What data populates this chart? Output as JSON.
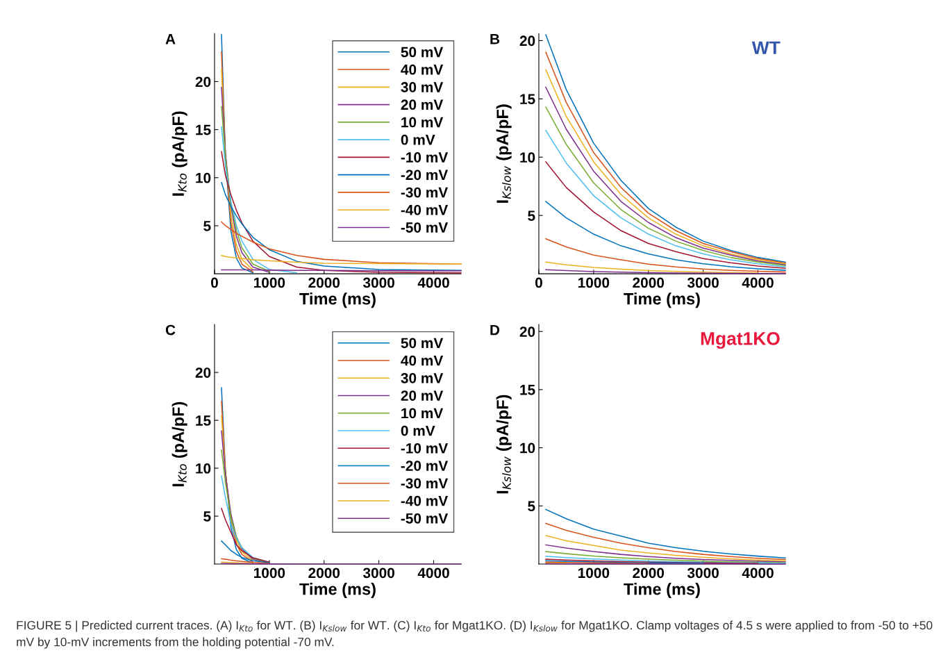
{
  "chart_data": [
    {
      "type": "line",
      "title": "A",
      "xlabel": "Time (ms)",
      "ylabel": "I$_{Kto}$ (pA/pF)",
      "xlim": [
        0,
        4500
      ],
      "xticks": [
        0,
        1000,
        2000,
        3000,
        4000
      ],
      "ylim": [
        0,
        25
      ],
      "yticks": [
        5,
        10,
        15,
        20
      ],
      "legend": "top right",
      "grid": false,
      "x": [
        127,
        200,
        300,
        400,
        500,
        700,
        1000,
        1500,
        2000,
        3000,
        4500
      ],
      "series": [
        {
          "name": "50 mV",
          "color": "#0072bd",
          "values": [
            24.9,
            12,
            4.4,
            1.6,
            0.6,
            0.1,
            null,
            null,
            null,
            null,
            null
          ]
        },
        {
          "name": "40 mV",
          "color": "#d95319",
          "values": [
            23.1,
            12,
            5.3,
            2.3,
            1,
            0.2,
            null,
            null,
            null,
            null,
            null
          ]
        },
        {
          "name": "30 mV",
          "color": "#edb120",
          "values": [
            21.3,
            12.4,
            6.1,
            3,
            1.5,
            0.4,
            null,
            null,
            null,
            null,
            null
          ]
        },
        {
          "name": "20 mV",
          "color": "#7e2f8e",
          "values": [
            19.4,
            12.5,
            7,
            3.9,
            2.2,
            0.7,
            0.15,
            null,
            null,
            null,
            null
          ]
        },
        {
          "name": "10 mV",
          "color": "#77ac30",
          "values": [
            17.4,
            12.1,
            7.3,
            4.5,
            2.7,
            1,
            0.25,
            null,
            null,
            null,
            null
          ]
        },
        {
          "name": "0 mV",
          "color": "#4dbeee",
          "values": [
            15.3,
            11.2,
            7.5,
            5,
            3.4,
            1.5,
            0.45,
            0.1,
            null,
            null,
            null
          ]
        },
        {
          "name": "-10 mV",
          "color": "#a2142f",
          "values": [
            12.7,
            10.2,
            8.2,
            6.6,
            5.3,
            3.4,
            1.8,
            0.7,
            0.35,
            0.15,
            0.1
          ]
        },
        {
          "name": "-20 mV",
          "color": "#0072bd",
          "values": [
            9.5,
            8.2,
            7,
            6,
            5.2,
            3.8,
            2.5,
            1.3,
            0.8,
            0.45,
            0.35
          ]
        },
        {
          "name": "-30 mV",
          "color": "#d95319",
          "values": [
            5.4,
            5,
            4.6,
            4.2,
            3.9,
            3.3,
            2.6,
            1.9,
            1.5,
            1.15,
            1
          ]
        },
        {
          "name": "-40 mV",
          "color": "#edb120",
          "values": [
            1.9,
            1.8,
            1.7,
            1.65,
            1.6,
            1.45,
            1.35,
            1.2,
            1.1,
            1.05,
            1
          ]
        },
        {
          "name": "-50 mV",
          "color": "#7e2f8e",
          "values": [
            0.4,
            0.4,
            0.4,
            0.4,
            0.4,
            0.4,
            0.38,
            0.36,
            0.35,
            0.32,
            0.3
          ]
        }
      ]
    },
    {
      "type": "line",
      "title": "B",
      "xlabel": "Time (ms)",
      "ylabel": "I$_{Kslow}$ (pA/pF)",
      "xlim": [
        0,
        4500
      ],
      "xticks": [
        0,
        1000,
        2000,
        3000,
        4000
      ],
      "ylim": [
        0,
        20.6
      ],
      "yticks": [
        5,
        10,
        15,
        20
      ],
      "grid": false,
      "annotations": [
        "WT"
      ],
      "x": [
        127,
        500,
        1000,
        1500,
        2000,
        2500,
        3000,
        3500,
        4000,
        4500
      ],
      "series": [
        {
          "color": "#0072bd",
          "values": [
            20.5,
            15.8,
            11.2,
            8.0,
            5.6,
            4.0,
            2.8,
            2.0,
            1.4,
            1.0
          ]
        },
        {
          "color": "#d95319",
          "values": [
            19.0,
            14.7,
            10.4,
            7.4,
            5.2,
            3.7,
            2.6,
            1.9,
            1.3,
            0.93
          ]
        },
        {
          "color": "#edb120",
          "values": [
            17.5,
            13.5,
            9.6,
            6.8,
            4.8,
            3.4,
            2.4,
            1.7,
            1.2,
            0.86
          ]
        },
        {
          "color": "#7e2f8e",
          "values": [
            16.0,
            12.4,
            8.8,
            6.2,
            4.4,
            3.1,
            2.2,
            1.6,
            1.1,
            0.78
          ]
        },
        {
          "color": "#77ac30",
          "values": [
            14.3,
            11.1,
            7.8,
            5.5,
            3.9,
            2.8,
            2.0,
            1.4,
            1.0,
            0.7
          ]
        },
        {
          "color": "#4dbeee",
          "values": [
            12.3,
            9.5,
            6.7,
            4.8,
            3.4,
            2.4,
            1.7,
            1.2,
            0.85,
            0.6
          ]
        },
        {
          "color": "#a2142f",
          "values": [
            9.6,
            7.4,
            5.3,
            3.7,
            2.6,
            1.9,
            1.3,
            0.94,
            0.66,
            0.47
          ]
        },
        {
          "color": "#0072bd",
          "values": [
            6.2,
            4.8,
            3.4,
            2.4,
            1.7,
            1.2,
            0.86,
            0.61,
            0.43,
            0.3
          ]
        },
        {
          "color": "#d95319",
          "values": [
            3.0,
            2.3,
            1.6,
            1.2,
            0.83,
            0.59,
            0.41,
            0.29,
            0.21,
            0.15
          ]
        },
        {
          "color": "#edb120",
          "values": [
            1.0,
            0.77,
            0.55,
            0.39,
            0.28,
            0.2,
            0.14,
            0.1,
            0.07,
            null
          ]
        },
        {
          "color": "#7e2f8e",
          "values": [
            0.35,
            0.27,
            0.19,
            0.14,
            0.1,
            0.07,
            0.05,
            0.03,
            0.02,
            0.02
          ]
        }
      ]
    },
    {
      "type": "line",
      "title": "C",
      "xlabel": "Time (ms)",
      "ylabel": "I$_{Kto}$ (pA/pF)",
      "xlim": [
        0,
        4500
      ],
      "xticks": [
        1000,
        2000,
        3000,
        4000
      ],
      "ylim": [
        0,
        25
      ],
      "yticks": [
        5,
        10,
        15,
        20
      ],
      "legend": "top right",
      "grid": false,
      "x": [
        127,
        200,
        300,
        400,
        500,
        700,
        1000,
        1500,
        2000,
        4500
      ],
      "series": [
        {
          "name": "50 mV",
          "color": "#0072bd",
          "values": [
            18.4,
            9.6,
            3.8,
            1.5,
            0.6,
            0.1,
            null,
            null,
            null,
            null
          ]
        },
        {
          "name": "40 mV",
          "color": "#d95319",
          "values": [
            17.0,
            9.6,
            4.5,
            2.1,
            1.0,
            0.2,
            null,
            null,
            null,
            null
          ]
        },
        {
          "name": "30 mV",
          "color": "#edb120",
          "values": [
            15.5,
            9.4,
            4.9,
            2.5,
            1.3,
            0.34,
            null,
            null,
            null,
            null
          ]
        },
        {
          "name": "20 mV",
          "color": "#7e2f8e",
          "values": [
            13.9,
            9.3,
            5.2,
            2.8,
            1.6,
            0.5,
            0.1,
            null,
            null,
            null
          ]
        },
        {
          "name": "10 mV",
          "color": "#77ac30",
          "values": [
            11.9,
            8.5,
            4.9,
            2.8,
            1.7,
            0.6,
            0.12,
            null,
            null,
            null
          ]
        },
        {
          "name": "0 mV",
          "color": "#4dbeee",
          "values": [
            9.2,
            6.9,
            4.2,
            2.7,
            1.7,
            0.68,
            0.17,
            null,
            null,
            null
          ]
        },
        {
          "name": "-10 mV",
          "color": "#a2142f",
          "values": [
            5.8,
            4.6,
            3.3,
            2.0,
            1.4,
            0.65,
            0.2,
            null,
            null,
            null
          ]
        },
        {
          "name": "-20 mV",
          "color": "#0072bd",
          "values": [
            2.4,
            2.0,
            1.4,
            1.0,
            0.7,
            0.35,
            0.13,
            null,
            null,
            null
          ]
        },
        {
          "name": "-30 mV",
          "color": "#d95319",
          "values": [
            0.55,
            0.5,
            0.4,
            0.33,
            0.27,
            0.17,
            0.08,
            null,
            null,
            null
          ]
        },
        {
          "name": "-40 mV",
          "color": "#edb120",
          "values": [
            0.2,
            0.18,
            0.15,
            0.12,
            0.1,
            0.06,
            null,
            null,
            null,
            null
          ]
        },
        {
          "name": "-50 mV",
          "color": "#7e2f8e",
          "values": [
            0.05,
            0.05,
            0.04,
            0.03,
            0.03,
            0.02,
            0.01,
            0,
            0,
            0
          ]
        }
      ]
    },
    {
      "type": "line",
      "title": "D",
      "xlabel": "Time (ms)",
      "ylabel": "I$_{Kslow}$ (pA/pF)",
      "xlim": [
        0,
        4500
      ],
      "xticks": [
        1000,
        2000,
        3000,
        4000
      ],
      "ylim": [
        0,
        20.6
      ],
      "yticks": [
        5,
        10,
        15,
        20
      ],
      "grid": false,
      "annotations": [
        "Mgat1KO",
        "FIGURE 5 | Predicted current traces. (A) I$_{Kto}$ for WT. (B) I$_{Kslow}$ for WT. (C) I$_{Kto}$ for Mgat1KO. (D) I$_{Kslow}$ for Mgat1KO. Clamp voltages of 4.5 s were applied to from -50 to +50 mV by 10-mV increments from the holding potential -70 mV."
      ],
      "x": [
        127,
        500,
        1000,
        1500,
        2000,
        2500,
        3000,
        3500,
        4000,
        4500
      ],
      "series": [
        {
          "color": "#0072bd",
          "values": [
            4.7,
            3.9,
            3.0,
            2.4,
            1.8,
            1.4,
            1.1,
            0.87,
            0.68,
            0.53
          ]
        },
        {
          "color": "#d95319",
          "values": [
            3.5,
            2.9,
            2.3,
            1.8,
            1.4,
            1.07,
            0.83,
            0.65,
            0.5,
            0.39
          ]
        },
        {
          "color": "#edb120",
          "values": [
            2.45,
            2.0,
            1.6,
            1.2,
            0.96,
            0.75,
            0.58,
            0.45,
            0.35,
            0.27
          ]
        },
        {
          "color": "#7e2f8e",
          "values": [
            1.65,
            1.37,
            1.07,
            0.83,
            0.65,
            0.5,
            0.39,
            0.31,
            0.24,
            0.18
          ]
        },
        {
          "color": "#77ac30",
          "values": [
            1.07,
            0.89,
            0.69,
            0.54,
            0.42,
            0.33,
            0.25,
            0.2,
            0.15,
            0.12
          ]
        },
        {
          "color": "#4dbeee",
          "values": [
            0.67,
            0.56,
            0.43,
            0.34,
            0.26,
            0.2,
            0.16,
            0.12,
            0.1,
            0.08
          ]
        },
        {
          "color": "#a2142f",
          "values": [
            0.42,
            0.35,
            0.27,
            0.21,
            0.16,
            0.13,
            0.1,
            0.08,
            0.06,
            null
          ]
        },
        {
          "color": "#0072bd",
          "values": [
            0.28,
            0.23,
            0.18,
            0.14,
            0.11,
            0.09,
            0.07,
            null,
            null,
            null
          ]
        },
        {
          "color": "#d95319",
          "values": [
            0.16,
            0.13,
            0.1,
            0.08,
            0.06,
            null,
            null,
            null,
            null,
            null
          ]
        },
        {
          "color": "#edb120",
          "values": [
            0.08,
            0.07,
            null,
            null,
            null,
            null,
            null,
            null,
            null,
            null
          ]
        },
        {
          "color": "#7e2f8e",
          "values": [
            0.03,
            0.02,
            0.02,
            0.02,
            0.01,
            0.01,
            0.01,
            0.01,
            0,
            0
          ]
        }
      ]
    }
  ]
}
